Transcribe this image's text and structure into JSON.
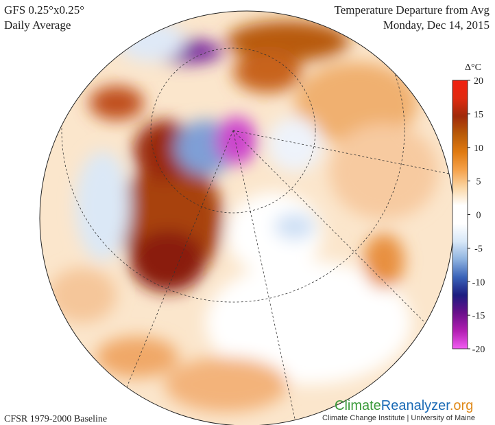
{
  "header": {
    "model": "GFS 0.25°x0.25°",
    "period": "Daily Average",
    "title": "Temperature Departure from Avg",
    "date": "Monday, Dec 14, 2015"
  },
  "colorbar": {
    "label": "Δ°C",
    "lim": [
      -20,
      20
    ],
    "ticks": [
      20,
      15,
      10,
      5,
      0,
      -5,
      -10,
      -15,
      -20
    ],
    "colors": [
      "#f25cf2",
      "#b21fb2",
      "#6a0f8a",
      "#1c1c80",
      "#3a63b8",
      "#8fb3e0",
      "#d8e8f8",
      "#ffffff",
      "#ffffff",
      "#fbd7a6",
      "#f5a14a",
      "#e07a10",
      "#b85a08",
      "#a02a0a",
      "#e02a10",
      "#f02010"
    ]
  },
  "footer": {
    "baseline": "CFSR 1979-2000 Baseline",
    "logo": [
      "Climate",
      "Reanalyzer",
      ".org"
    ],
    "credit": "Climate Change Institute | University of Maine"
  }
}
